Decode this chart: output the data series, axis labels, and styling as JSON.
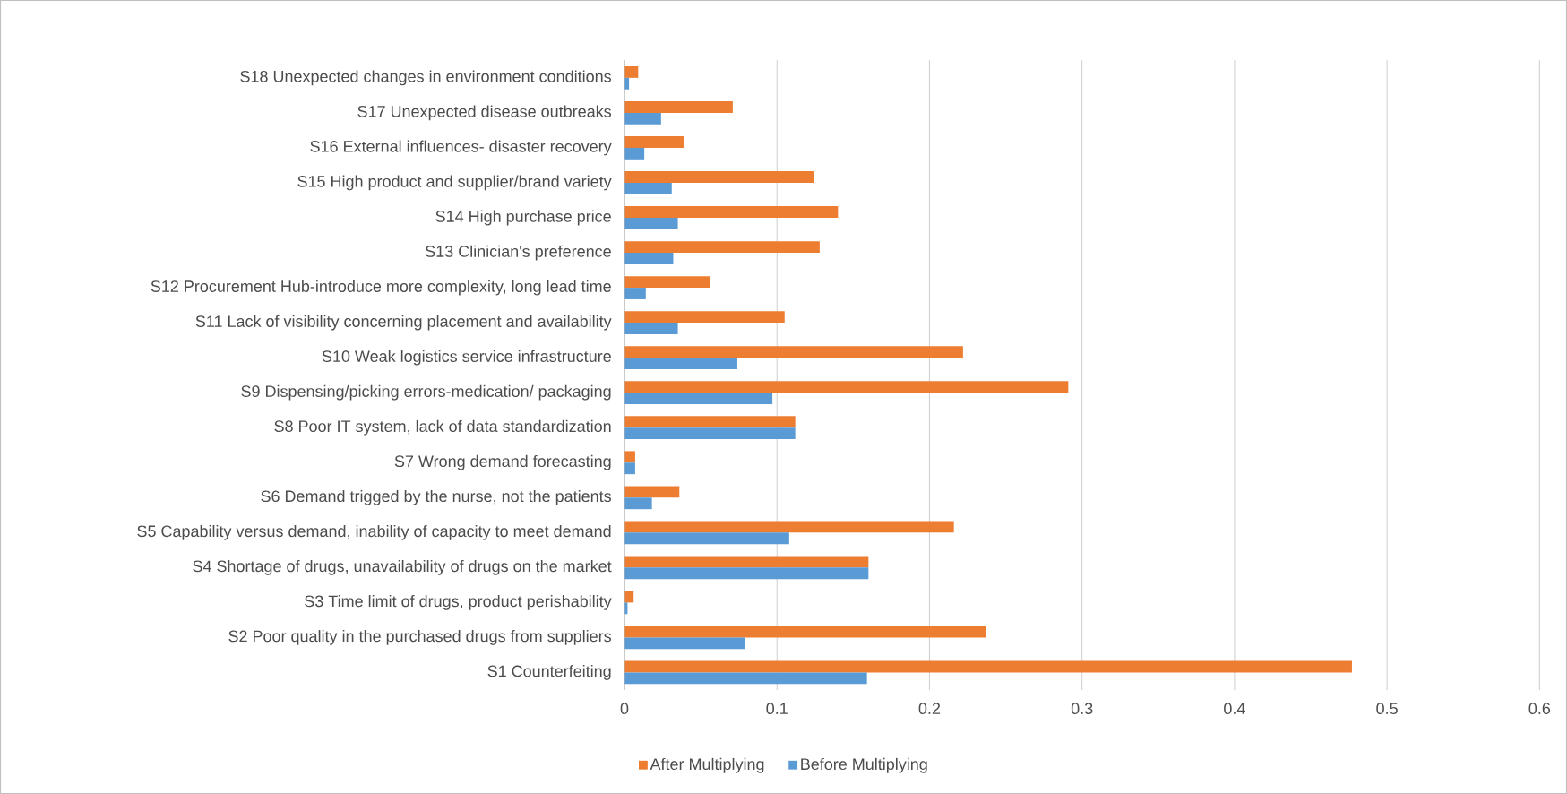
{
  "chart_data": {
    "type": "bar",
    "orientation": "horizontal",
    "categories": [
      "S18 Unexpected changes in environment conditions",
      "S17 Unexpected disease outbreaks",
      "S16 External influences- disaster recovery",
      "S15 High product and supplier/brand variety",
      "S14 High purchase price",
      "S13 Clinician's preference",
      "S12 Procurement Hub-introduce more complexity, long lead time",
      "S11 Lack of visibility concerning placement and availability",
      "S10 Weak logistics service infrastructure",
      "S9 Dispensing/picking errors-medication/ packaging",
      "S8 Poor IT system, lack of data standardization",
      "S7 Wrong demand forecasting",
      "S6 Demand trigged by the nurse, not the patients",
      "S5 Capability versus demand, inability of capacity to meet demand",
      "S4 Shortage of drugs, unavailability of drugs on the market",
      "S3 Time limit of drugs, product perishability",
      "S2 Poor quality in the purchased drugs from suppliers",
      "S1 Counterfeiting"
    ],
    "series": [
      {
        "name": "After Multiplying",
        "color": "#ed7d31",
        "values": [
          0.009,
          0.071,
          0.039,
          0.124,
          0.14,
          0.128,
          0.056,
          0.105,
          0.222,
          0.291,
          0.112,
          0.007,
          0.036,
          0.216,
          0.16,
          0.006,
          0.237,
          0.477
        ]
      },
      {
        "name": "Before Multiplying",
        "color": "#5b9bd5",
        "values": [
          0.003,
          0.024,
          0.013,
          0.031,
          0.035,
          0.032,
          0.014,
          0.035,
          0.074,
          0.097,
          0.112,
          0.007,
          0.018,
          0.108,
          0.16,
          0.002,
          0.079,
          0.159
        ]
      }
    ],
    "xlim": [
      0,
      0.6
    ],
    "xticks": [
      0,
      0.1,
      0.2,
      0.3,
      0.4,
      0.5,
      0.6
    ],
    "grid": "x",
    "legend": "bottom"
  }
}
